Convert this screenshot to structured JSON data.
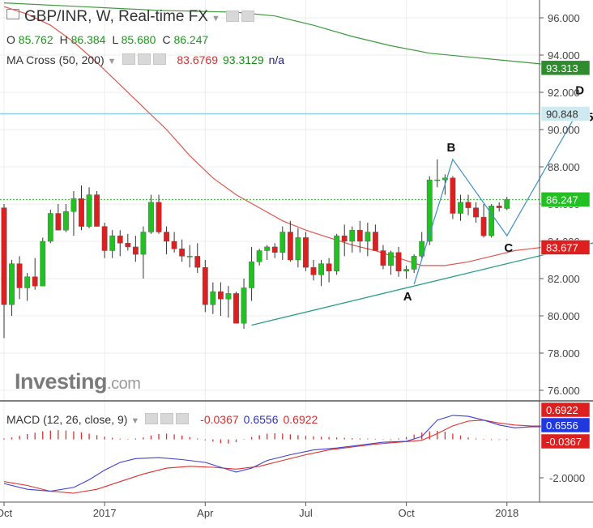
{
  "header": {
    "symbol": "GBP/INR, W, Real-time FX",
    "ohlc": {
      "o_label": "O",
      "o": "85.762",
      "h_label": "H",
      "h": "86.384",
      "l_label": "L",
      "l": "85.680",
      "c_label": "C",
      "c": "86.247"
    },
    "ma": {
      "name": "MA Cross (50, 200)",
      "v1": "83.6769",
      "v2": "93.3129",
      "v3": "n/a"
    }
  },
  "logo": {
    "brand": "Investing",
    "suffix": ".com"
  },
  "colors": {
    "up": "#22c022",
    "down": "#dd1f1f",
    "wick": "#333333",
    "ma50": "#e0564f",
    "ma200": "#3f9a3f",
    "trend": "#2a9d8a",
    "pattern": "#3d8fc6",
    "resistance": "#8fd0e0",
    "macd": "#4040d0",
    "signal": "#e03030",
    "hist": "#e03030"
  },
  "chart_data": [
    {
      "type": "candlestick",
      "title": "GBP/INR, W, Real-time FX",
      "ylim": [
        75.0,
        97.0
      ],
      "y_ticks": [
        "96.000",
        "94.000",
        "92.000",
        "90.000",
        "88.000",
        "86.000",
        "84.000",
        "82.000",
        "80.000",
        "78.000",
        "76.000"
      ],
      "x_ticks": [
        {
          "label": "Oct",
          "index": 0
        },
        {
          "label": "2017",
          "index": 13
        },
        {
          "label": "Apr",
          "index": 26
        },
        {
          "label": "Jul",
          "index": 39
        },
        {
          "label": "Oct",
          "index": 52
        },
        {
          "label": "2018",
          "index": 65
        }
      ],
      "candles": [
        [
          85.8,
          86.0,
          78.8,
          80.6
        ],
        [
          80.6,
          83.0,
          80.0,
          82.8
        ],
        [
          82.8,
          83.2,
          80.9,
          81.5
        ],
        [
          81.5,
          82.3,
          80.8,
          82.1
        ],
        [
          82.1,
          83.1,
          81.4,
          81.6
        ],
        [
          81.6,
          84.2,
          81.6,
          84.0
        ],
        [
          84.0,
          85.7,
          83.9,
          85.5
        ],
        [
          85.5,
          86.0,
          84.6,
          84.6
        ],
        [
          84.6,
          86.0,
          84.5,
          85.6
        ],
        [
          85.6,
          86.7,
          84.3,
          86.3
        ],
        [
          86.3,
          87.0,
          84.6,
          84.8
        ],
        [
          84.8,
          86.9,
          84.7,
          86.5
        ],
        [
          86.5,
          86.7,
          84.8,
          84.8
        ],
        [
          84.8,
          85.0,
          83.1,
          83.5
        ],
        [
          83.5,
          84.6,
          83.1,
          84.3
        ],
        [
          84.3,
          84.6,
          83.2,
          83.9
        ],
        [
          83.9,
          84.4,
          83.5,
          83.7
        ],
        [
          83.7,
          84.3,
          82.9,
          83.3
        ],
        [
          83.3,
          84.8,
          82.0,
          84.5
        ],
        [
          84.5,
          86.5,
          84.4,
          86.1
        ],
        [
          86.1,
          86.5,
          84.4,
          84.5
        ],
        [
          84.5,
          84.8,
          83.3,
          84.0
        ],
        [
          84.0,
          84.5,
          83.4,
          83.6
        ],
        [
          83.6,
          84.1,
          82.9,
          83.2
        ],
        [
          83.2,
          83.8,
          82.6,
          83.2
        ],
        [
          83.2,
          83.9,
          82.3,
          82.6
        ],
        [
          82.6,
          83.0,
          80.2,
          80.6
        ],
        [
          80.6,
          81.8,
          80.1,
          81.3
        ],
        [
          81.3,
          81.8,
          80.0,
          80.9
        ],
        [
          80.9,
          81.6,
          79.9,
          81.2
        ],
        [
          81.2,
          81.3,
          79.6,
          79.6
        ],
        [
          79.6,
          82.0,
          79.3,
          81.5
        ],
        [
          81.5,
          83.7,
          80.8,
          82.9
        ],
        [
          82.9,
          83.6,
          82.7,
          83.5
        ],
        [
          83.5,
          83.8,
          83.0,
          83.7
        ],
        [
          83.7,
          83.9,
          83.1,
          83.4
        ],
        [
          83.4,
          84.8,
          83.0,
          84.5
        ],
        [
          84.5,
          85.1,
          82.9,
          83.0
        ],
        [
          83.0,
          84.7,
          82.6,
          84.2
        ],
        [
          84.2,
          84.5,
          82.4,
          82.6
        ],
        [
          82.6,
          83.0,
          81.9,
          82.2
        ],
        [
          82.2,
          83.0,
          81.6,
          82.8
        ],
        [
          82.8,
          83.1,
          81.8,
          82.4
        ],
        [
          82.4,
          84.4,
          82.2,
          84.3
        ],
        [
          84.3,
          84.9,
          83.2,
          84.0
        ],
        [
          84.0,
          84.8,
          83.4,
          84.6
        ],
        [
          84.6,
          85.1,
          83.4,
          84.0
        ],
        [
          84.0,
          85.0,
          83.2,
          84.5
        ],
        [
          84.5,
          84.9,
          83.6,
          83.5
        ],
        [
          83.5,
          83.8,
          82.5,
          82.7
        ],
        [
          82.7,
          83.5,
          82.2,
          83.4
        ],
        [
          83.4,
          83.7,
          82.1,
          82.4
        ],
        [
          82.4,
          82.7,
          82.0,
          82.5
        ],
        [
          82.5,
          83.3,
          82.3,
          83.2
        ],
        [
          83.2,
          84.5,
          83.1,
          84.0
        ],
        [
          84.0,
          87.5,
          83.8,
          87.3
        ],
        [
          87.3,
          88.4,
          86.9,
          87.3
        ],
        [
          87.3,
          87.6,
          86.5,
          87.4
        ],
        [
          87.4,
          87.5,
          85.2,
          85.5
        ],
        [
          85.5,
          86.5,
          85.1,
          86.1
        ],
        [
          86.1,
          86.5,
          85.4,
          85.8
        ],
        [
          85.8,
          86.1,
          85.0,
          85.3
        ],
        [
          85.3,
          86.0,
          84.2,
          84.3
        ],
        [
          84.3,
          86.0,
          84.2,
          85.9
        ],
        [
          85.9,
          86.1,
          85.6,
          85.8
        ],
        [
          85.762,
          86.384,
          85.68,
          86.247
        ]
      ],
      "ma50": [
        [
          0,
          96.6
        ],
        [
          3,
          96.2
        ],
        [
          6,
          95.6
        ],
        [
          9,
          94.7
        ],
        [
          12,
          93.6
        ],
        [
          15,
          92.4
        ],
        [
          18,
          91.2
        ],
        [
          21,
          90.0
        ],
        [
          24,
          88.6
        ],
        [
          27,
          87.4
        ],
        [
          30,
          86.5
        ],
        [
          33,
          85.8
        ],
        [
          36,
          85.1
        ],
        [
          39,
          84.6
        ],
        [
          42,
          84.2
        ],
        [
          45,
          83.8
        ],
        [
          48,
          83.5
        ],
        [
          51,
          83.1
        ],
        [
          54,
          82.7
        ],
        [
          57,
          82.7
        ],
        [
          60,
          82.9
        ],
        [
          63,
          83.2
        ],
        [
          66,
          83.5
        ],
        [
          68,
          83.6
        ],
        [
          70,
          83.7
        ],
        [
          72,
          83.68
        ]
      ],
      "ma200": [
        [
          0,
          96.8
        ],
        [
          10,
          96.6
        ],
        [
          20,
          96.4
        ],
        [
          30,
          96.3
        ],
        [
          35,
          96.1
        ],
        [
          40,
          95.6
        ],
        [
          45,
          95.0
        ],
        [
          50,
          94.5
        ],
        [
          55,
          94.1
        ],
        [
          60,
          93.9
        ],
        [
          65,
          93.7
        ],
        [
          70,
          93.5
        ],
        [
          72,
          93.31
        ]
      ],
      "trendline": [
        [
          32,
          79.5
        ],
        [
          80,
          84.3
        ]
      ],
      "resistance_level": 90.848,
      "pattern": {
        "points": [
          {
            "label": "A",
            "index": 53,
            "value": 81.7
          },
          {
            "label": "B",
            "index": 58,
            "value": 88.4
          },
          {
            "label": "C",
            "index": 65,
            "value": 84.3
          },
          {
            "label": "D",
            "index": 74,
            "value": 90.85
          }
        ],
        "annotation": "90.85"
      },
      "last_price_line": 86.247,
      "value_tags": [
        {
          "label": "93.313",
          "value": 93.313,
          "color": "#2e8b2e"
        },
        {
          "label": "90.848",
          "value": 90.848,
          "color": "#cfe9f0",
          "text_color": "#333333"
        },
        {
          "label": "86.247",
          "value": 86.247,
          "color": "#22c022"
        },
        {
          "label": "83.677",
          "value": 83.677,
          "color": "#dd1f1f"
        }
      ]
    },
    {
      "type": "line",
      "title": "MACD (12, 26, close, 9)",
      "values_shown": [
        "-0.0367",
        "0.6556",
        "0.6922"
      ],
      "ylim": [
        -3.0,
        2.0
      ],
      "y_ticks": [
        "-2.0000"
      ],
      "value_tags": [
        {
          "label": "0.6922",
          "value": 0.6922,
          "color": "#dd1f1f"
        },
        {
          "label": "0.6556",
          "value": 0.6556,
          "color": "#1f38e0"
        },
        {
          "label": "-0.0367",
          "value": -0.0367,
          "color": "#dd1f1f"
        }
      ],
      "macd": [
        [
          0,
          -2.3
        ],
        [
          3,
          -2.6
        ],
        [
          6,
          -2.7
        ],
        [
          9,
          -2.5
        ],
        [
          11,
          -2.1
        ],
        [
          13,
          -1.6
        ],
        [
          15,
          -1.2
        ],
        [
          17,
          -1.0
        ],
        [
          20,
          -0.95
        ],
        [
          23,
          -1.05
        ],
        [
          26,
          -1.2
        ],
        [
          28,
          -1.45
        ],
        [
          30,
          -1.7
        ],
        [
          32,
          -1.5
        ],
        [
          34,
          -1.1
        ],
        [
          37,
          -0.8
        ],
        [
          40,
          -0.55
        ],
        [
          43,
          -0.45
        ],
        [
          46,
          -0.3
        ],
        [
          49,
          -0.15
        ],
        [
          52,
          -0.1
        ],
        [
          54,
          0.15
        ],
        [
          56,
          1.0
        ],
        [
          58,
          1.25
        ],
        [
          60,
          1.2
        ],
        [
          62,
          1.0
        ],
        [
          64,
          0.75
        ],
        [
          66,
          0.6
        ],
        [
          68,
          0.65
        ],
        [
          70,
          0.6556
        ]
      ],
      "signal": [
        [
          0,
          -2.2
        ],
        [
          3,
          -2.4
        ],
        [
          6,
          -2.7
        ],
        [
          9,
          -2.8
        ],
        [
          12,
          -2.6
        ],
        [
          15,
          -2.2
        ],
        [
          18,
          -1.8
        ],
        [
          21,
          -1.5
        ],
        [
          24,
          -1.4
        ],
        [
          27,
          -1.45
        ],
        [
          30,
          -1.55
        ],
        [
          33,
          -1.4
        ],
        [
          36,
          -1.1
        ],
        [
          39,
          -0.8
        ],
        [
          42,
          -0.55
        ],
        [
          45,
          -0.4
        ],
        [
          48,
          -0.25
        ],
        [
          51,
          -0.15
        ],
        [
          54,
          -0.05
        ],
        [
          56,
          0.3
        ],
        [
          58,
          0.7
        ],
        [
          60,
          0.95
        ],
        [
          62,
          1.0
        ],
        [
          64,
          0.85
        ],
        [
          66,
          0.75
        ],
        [
          68,
          0.7
        ],
        [
          70,
          0.6922
        ]
      ],
      "histogram": [
        0.05,
        0.1,
        0.18,
        0.28,
        0.35,
        0.42,
        0.46,
        0.48,
        0.46,
        0.42,
        0.36,
        0.3,
        0.22,
        0.14,
        0.08,
        0.04,
        0.02,
        0.05,
        0.1,
        0.2,
        0.28,
        0.3,
        0.26,
        0.2,
        0.12,
        0.05,
        -0.05,
        -0.12,
        -0.2,
        -0.22,
        -0.15,
        0.02,
        0.12,
        0.22,
        0.3,
        0.32,
        0.3,
        0.26,
        0.22,
        0.18,
        0.16,
        0.14,
        0.12,
        0.1,
        0.08,
        0.06,
        0.05,
        0.04,
        0.03,
        0.02,
        -0.05,
        0.05,
        0.12,
        0.25,
        0.35,
        0.42,
        0.45,
        0.4,
        0.3,
        0.2,
        0.1,
        0.05,
        -0.02,
        -0.04,
        -0.03,
        -0.0367
      ]
    }
  ]
}
